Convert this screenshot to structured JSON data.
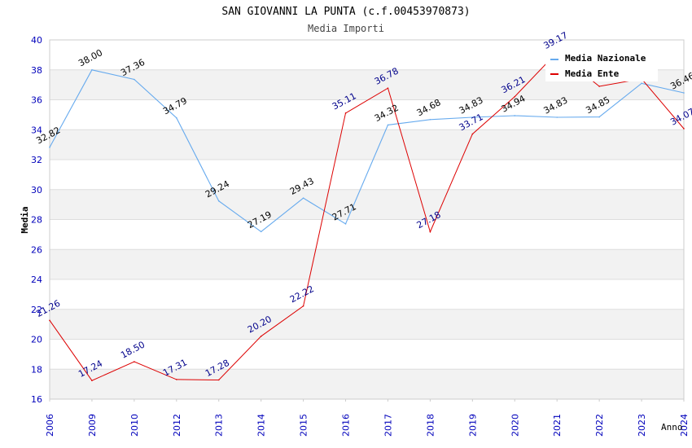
{
  "chart_data": {
    "type": "line",
    "title": "SAN GIOVANNI LA PUNTA (c.f.00453970873)",
    "subtitle": "Media Importi",
    "xlabel": "Anno",
    "ylabel": "Media",
    "ylim": [
      16,
      40
    ],
    "yticks": [
      "16",
      "18",
      "20",
      "22",
      "24",
      "26",
      "28",
      "30",
      "32",
      "34",
      "36",
      "38",
      "40"
    ],
    "categories": [
      "2006",
      "2009",
      "2010",
      "2012",
      "2013",
      "2014",
      "2015",
      "2016",
      "2017",
      "2018",
      "2019",
      "2020",
      "2021",
      "2022",
      "2023",
      "2024"
    ],
    "grid": true,
    "legend_position": "top-right",
    "series": [
      {
        "name": "Media Nazionale",
        "color": "#66aaee",
        "label_color": "#000000",
        "values": [
          32.82,
          38.0,
          37.36,
          34.79,
          29.24,
          27.19,
          29.43,
          27.71,
          34.32,
          34.68,
          34.83,
          34.94,
          34.83,
          34.85,
          37.1,
          36.46
        ],
        "labels": [
          "32.82",
          "38.00",
          "37.36",
          "34.79",
          "29.24",
          "27.19",
          "29.43",
          "27.71",
          "34.32",
          "34.68",
          "34.83",
          "34.94",
          "34.83",
          "34.85",
          "",
          "36.46"
        ]
      },
      {
        "name": "Media Ente",
        "color": "#dd0000",
        "label_color": "#00008b",
        "values": [
          21.26,
          17.24,
          18.5,
          17.31,
          17.28,
          20.2,
          22.22,
          35.11,
          36.78,
          27.18,
          33.71,
          36.21,
          39.17,
          36.9,
          37.4,
          34.07
        ],
        "labels": [
          "21.26",
          "17.24",
          "18.50",
          "17.31",
          "17.28",
          "20.20",
          "22.22",
          "35.11",
          "36.78",
          "27.18",
          "33.71",
          "36.21",
          "39.17",
          "",
          "",
          "34.07"
        ]
      }
    ]
  }
}
